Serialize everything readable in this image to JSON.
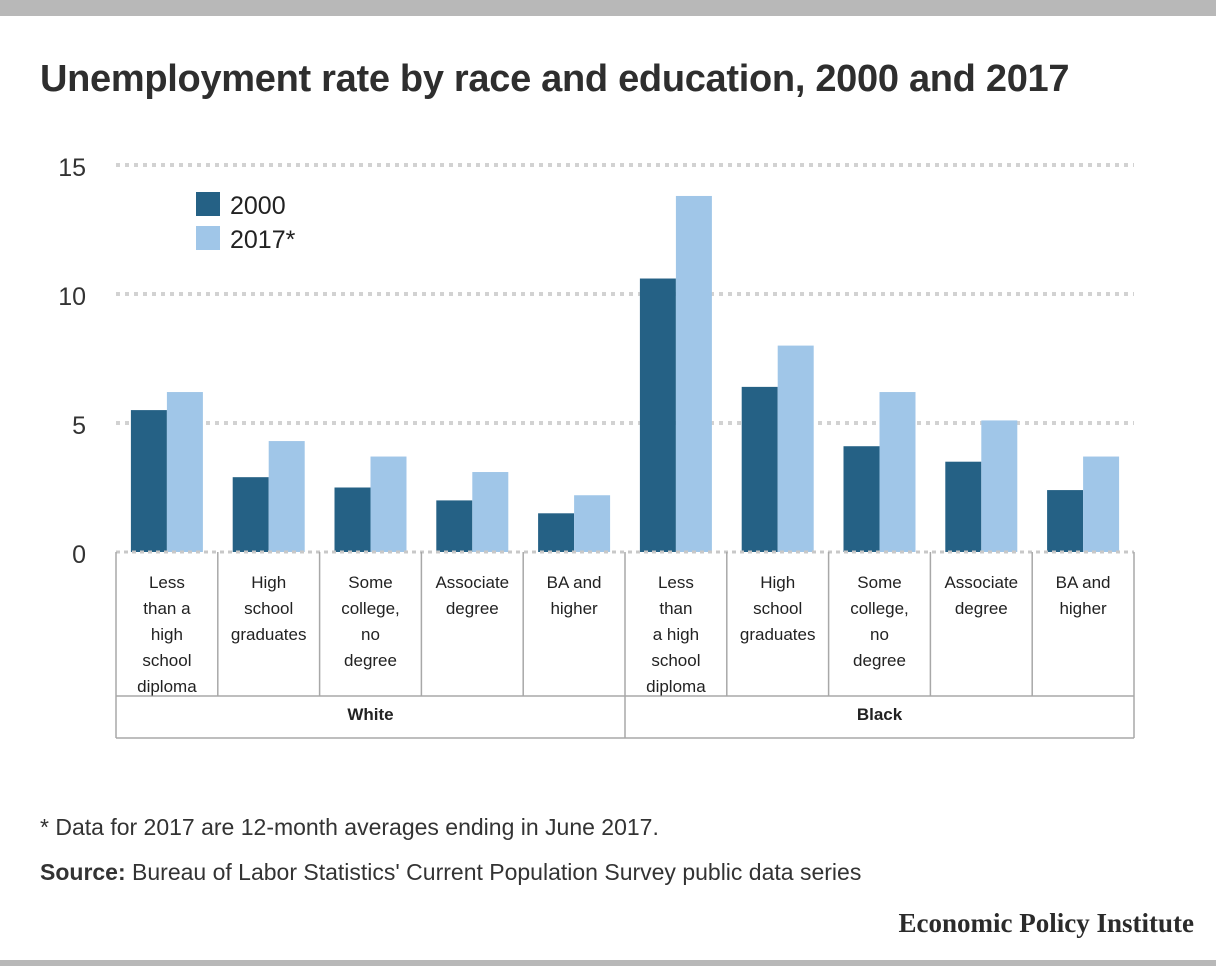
{
  "title": "Unemployment rate by race and education, 2000 and 2017",
  "note": "* Data for 2017 are 12-month averages ending in June 2017.",
  "source_label": "Source:",
  "source_text": " Bureau of Labor Statistics' Current Population Survey public data series",
  "brand": "Economic Policy Institute",
  "chart_data": {
    "type": "bar",
    "title": "Unemployment rate by race and education, 2000 and 2017",
    "xlabel": "",
    "ylabel": "",
    "ylim": [
      0,
      15
    ],
    "yticks": [
      0,
      5,
      10,
      15
    ],
    "grid": true,
    "legend_position": "top-left",
    "groups": [
      {
        "label": "White",
        "categories": [
          [
            "Less",
            "than a",
            "high",
            "school",
            "diploma"
          ],
          [
            "High",
            "school",
            "graduates"
          ],
          [
            "Some",
            "college,",
            "no",
            "degree"
          ],
          [
            "Associate",
            "degree"
          ],
          [
            "BA and",
            "higher"
          ]
        ]
      },
      {
        "label": "Black",
        "categories": [
          [
            "Less",
            "than",
            "a high",
            "school",
            "diploma"
          ],
          [
            "High",
            "school",
            "graduates"
          ],
          [
            "Some",
            "college,",
            "no",
            "degree"
          ],
          [
            "Associate",
            "degree"
          ],
          [
            "BA and",
            "higher"
          ]
        ]
      }
    ],
    "series": [
      {
        "name": "2000",
        "color": "#256185",
        "values": [
          5.5,
          2.9,
          2.5,
          2.0,
          1.5,
          10.6,
          6.4,
          4.1,
          3.5,
          2.4
        ]
      },
      {
        "name": "2017*",
        "color": "#a0c6e8",
        "values": [
          6.2,
          4.3,
          3.7,
          3.1,
          2.2,
          13.8,
          8.0,
          6.2,
          5.1,
          3.7
        ]
      }
    ]
  }
}
